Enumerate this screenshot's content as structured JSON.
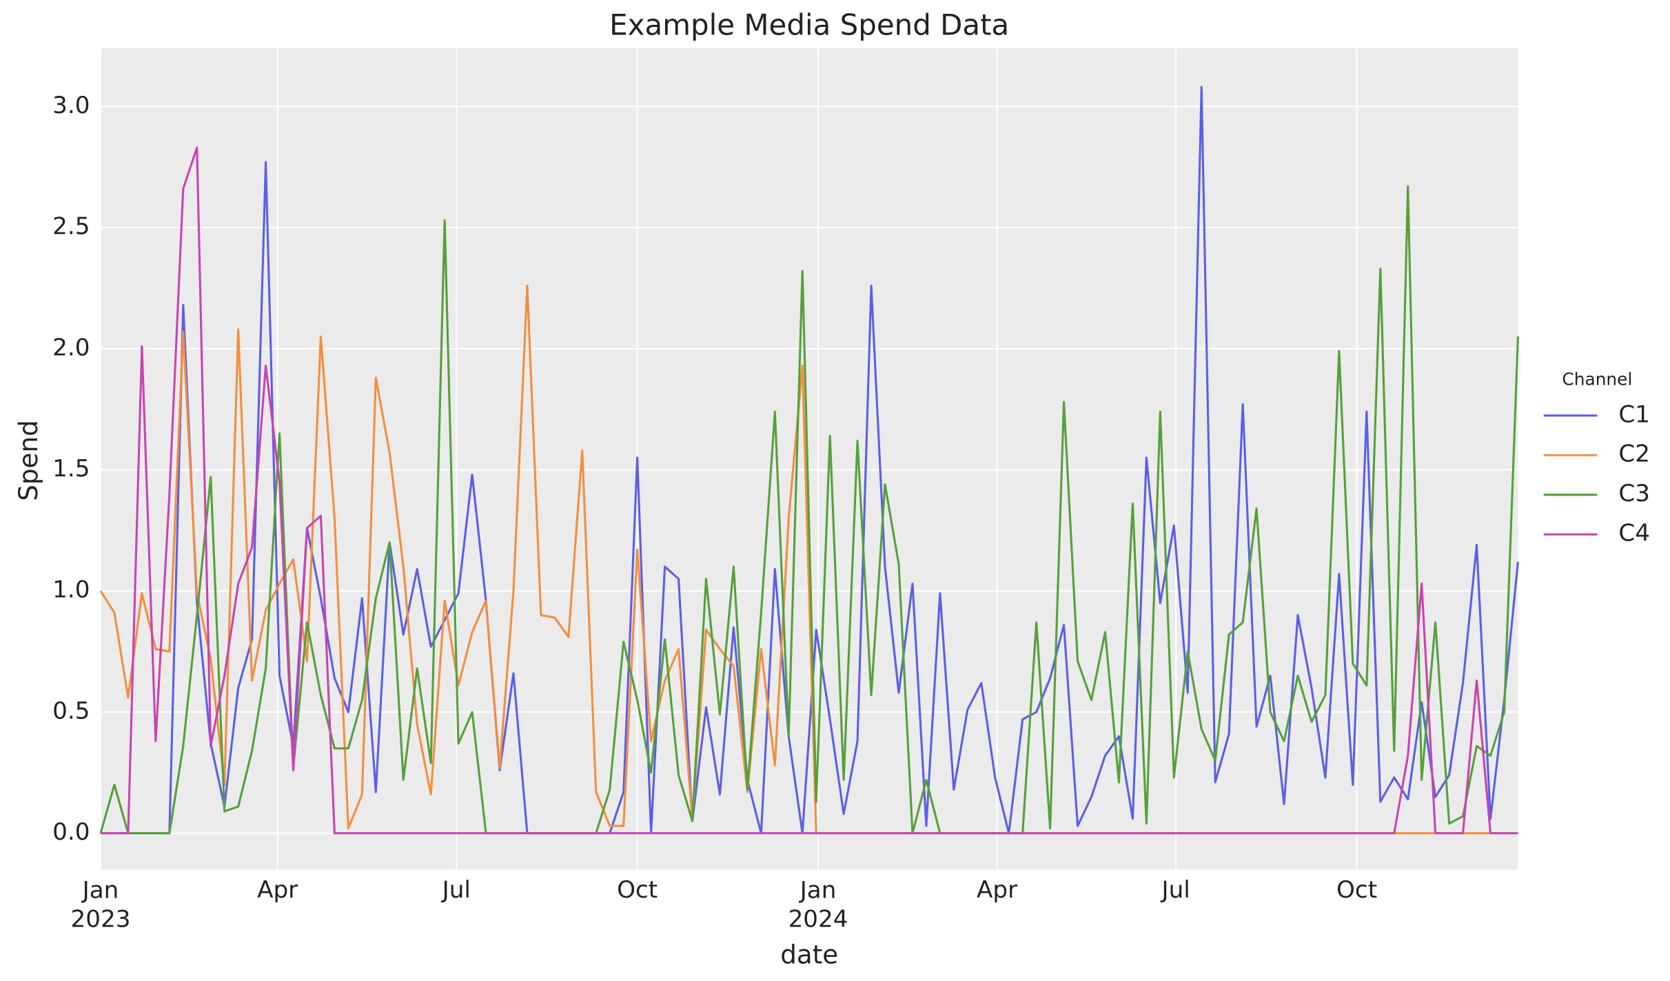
{
  "chart_data": {
    "type": "line",
    "title": "Example Media Spend Data",
    "x_label": "date",
    "y_label": "Spend",
    "legend_title": "Channel",
    "legend": "right",
    "grid": true,
    "x": [
      0,
      7,
      14,
      21,
      28,
      35,
      42,
      49,
      56,
      63,
      70,
      77,
      84,
      91,
      98,
      105,
      112,
      119,
      126,
      133,
      140,
      147,
      154,
      161,
      168,
      175,
      182,
      189,
      196,
      203,
      210,
      217,
      224,
      231,
      238,
      245,
      252,
      259,
      266,
      273,
      280,
      287,
      294,
      301,
      308,
      315,
      322,
      329,
      336,
      343,
      350,
      357,
      364,
      371,
      378,
      385,
      392,
      399,
      406,
      413,
      420,
      427,
      434,
      441,
      448,
      455,
      462,
      469,
      476,
      483,
      490,
      497,
      504,
      511,
      518,
      525,
      532,
      539,
      546,
      553,
      560,
      567,
      574,
      581,
      588,
      595,
      602,
      609,
      616,
      623,
      630,
      637,
      644,
      651,
      658,
      665,
      672,
      679,
      686,
      693,
      700,
      707,
      714,
      721
    ],
    "xlim": [
      0,
      721
    ],
    "xticks": [
      {
        "value": 0,
        "label": "Jan\n2023"
      },
      {
        "value": 90,
        "label": "Apr"
      },
      {
        "value": 181,
        "label": "Jul"
      },
      {
        "value": 273,
        "label": "Oct"
      },
      {
        "value": 365,
        "label": "Jan\n2024"
      },
      {
        "value": 456,
        "label": "Apr"
      },
      {
        "value": 547,
        "label": "Jul"
      },
      {
        "value": 639,
        "label": "Oct"
      }
    ],
    "ylim": [
      -0.15,
      3.24
    ],
    "yticks": [
      {
        "value": 0,
        "label": "0.0"
      },
      {
        "value": 0.5,
        "label": "0.5"
      },
      {
        "value": 1,
        "label": "1.0"
      },
      {
        "value": 1.5,
        "label": "1.5"
      },
      {
        "value": 2,
        "label": "2.0"
      },
      {
        "value": 2.5,
        "label": "2.5"
      },
      {
        "value": 3,
        "label": "3.0"
      }
    ],
    "series": [
      {
        "name": "C1",
        "color": "#5b5fe6",
        "values": [
          0,
          0,
          0,
          0,
          0,
          0,
          2.18,
          0.95,
          0.37,
          0.11,
          0.6,
          0.8,
          2.77,
          0.65,
          0.36,
          1.26,
          0.97,
          0.64,
          0.5,
          0.97,
          0.17,
          1.2,
          0.82,
          1.09,
          0.77,
          0.88,
          0.99,
          1.48,
          0.96,
          0.26,
          0.66,
          0,
          0,
          0,
          0,
          0,
          0,
          0,
          0.17,
          1.55,
          0,
          1.1,
          1.05,
          0.05,
          0.52,
          0.16,
          0.85,
          0.22,
          0,
          1.09,
          0.4,
          0,
          0.84,
          0.47,
          0.08,
          0.38,
          2.26,
          1.1,
          0.58,
          1.03,
          0.03,
          0.99,
          0.18,
          0.51,
          0.62,
          0.23,
          0,
          0.47,
          0.5,
          0.64,
          0.86,
          0.03,
          0.15,
          0.32,
          0.4,
          0.06,
          1.55,
          0.95,
          1.27,
          0.58,
          3.08,
          0.21,
          0.41,
          1.77,
          0.44,
          0.65,
          0.12,
          0.9,
          0.6,
          0.23,
          1.07,
          0.2,
          1.74,
          0.13,
          0.23,
          0.14,
          0.54,
          0.15,
          0.24,
          0.62,
          1.19,
          0.06,
          0.55,
          1.12
        ]
      },
      {
        "name": "C2",
        "color": "#f28e3f",
        "values": [
          1.0,
          0.91,
          0.56,
          0.99,
          0.76,
          0.75,
          2.07,
          0.99,
          0.72,
          0.2,
          2.08,
          0.63,
          0.92,
          1.03,
          1.13,
          0.71,
          2.05,
          1.3,
          0.02,
          0.16,
          1.88,
          1.57,
          1.1,
          0.45,
          0.16,
          0.96,
          0.61,
          0.83,
          0.96,
          0.27,
          1.0,
          2.26,
          0.9,
          0.89,
          0.81,
          1.58,
          0.17,
          0.03,
          0.03,
          1.17,
          0.38,
          0.63,
          0.76,
          0.06,
          0.84,
          0.76,
          0.69,
          0.17,
          0.76,
          0.28,
          1.3,
          1.93,
          0,
          0,
          0,
          0,
          0,
          0,
          0,
          0,
          0,
          0,
          0,
          0,
          0,
          0,
          0,
          0,
          0,
          0,
          0,
          0,
          0,
          0,
          0,
          0,
          0,
          0,
          0,
          0,
          0,
          0,
          0,
          0,
          0,
          0,
          0,
          0,
          0,
          0,
          0,
          0,
          0,
          0,
          0,
          0,
          0,
          0,
          0,
          0,
          0,
          0,
          0,
          0
        ]
      },
      {
        "name": "C3",
        "color": "#55a03a",
        "values": [
          0,
          0.2,
          0,
          0,
          0,
          0,
          0.36,
          0.9,
          1.47,
          0.09,
          0.11,
          0.34,
          0.68,
          1.65,
          0.27,
          0.87,
          0.57,
          0.35,
          0.35,
          0.55,
          0.97,
          1.2,
          0.22,
          0.68,
          0.29,
          2.53,
          0.37,
          0.5,
          0,
          0,
          0,
          0,
          0,
          0,
          0,
          0,
          0,
          0.18,
          0.79,
          0.55,
          0.25,
          0.8,
          0.24,
          0.05,
          1.05,
          0.49,
          1.1,
          0.18,
          0.91,
          1.74,
          0.4,
          2.32,
          0.13,
          1.64,
          0.22,
          1.62,
          0.57,
          1.44,
          1.11,
          0,
          0.22,
          0,
          0,
          0,
          0,
          0,
          0,
          0,
          0.87,
          0.02,
          1.78,
          0.71,
          0.55,
          0.83,
          0.21,
          1.36,
          0.04,
          1.74,
          0.23,
          0.75,
          0.43,
          0.3,
          0.82,
          0.87,
          1.34,
          0.5,
          0.38,
          0.65,
          0.46,
          0.57,
          1.99,
          0.7,
          0.61,
          2.33,
          0.34,
          2.67,
          0.22,
          0.87,
          0.04,
          0.07,
          0.36,
          0.32,
          0.5,
          2.05
        ]
      },
      {
        "name": "C4",
        "color": "#c844b0",
        "values": [
          0,
          0,
          0,
          2.01,
          0.38,
          1.4,
          2.66,
          2.83,
          0.36,
          0.65,
          1.03,
          1.18,
          1.93,
          1.45,
          0.26,
          1.26,
          1.31,
          0,
          0,
          0,
          0,
          0,
          0,
          0,
          0,
          0,
          0,
          0,
          0,
          0,
          0,
          0,
          0,
          0,
          0,
          0,
          0,
          0,
          0,
          0,
          0,
          0,
          0,
          0,
          0,
          0,
          0,
          0,
          0,
          0,
          0,
          0,
          0,
          0,
          0,
          0,
          0,
          0,
          0,
          0,
          0,
          0,
          0,
          0,
          0,
          0,
          0,
          0,
          0,
          0,
          0,
          0,
          0,
          0,
          0,
          0,
          0,
          0,
          0,
          0,
          0,
          0,
          0,
          0,
          0,
          0,
          0,
          0,
          0,
          0,
          0,
          0,
          0,
          0,
          0,
          0.32,
          1.03,
          0,
          0,
          0,
          0.63,
          0,
          0,
          0
        ]
      }
    ]
  }
}
